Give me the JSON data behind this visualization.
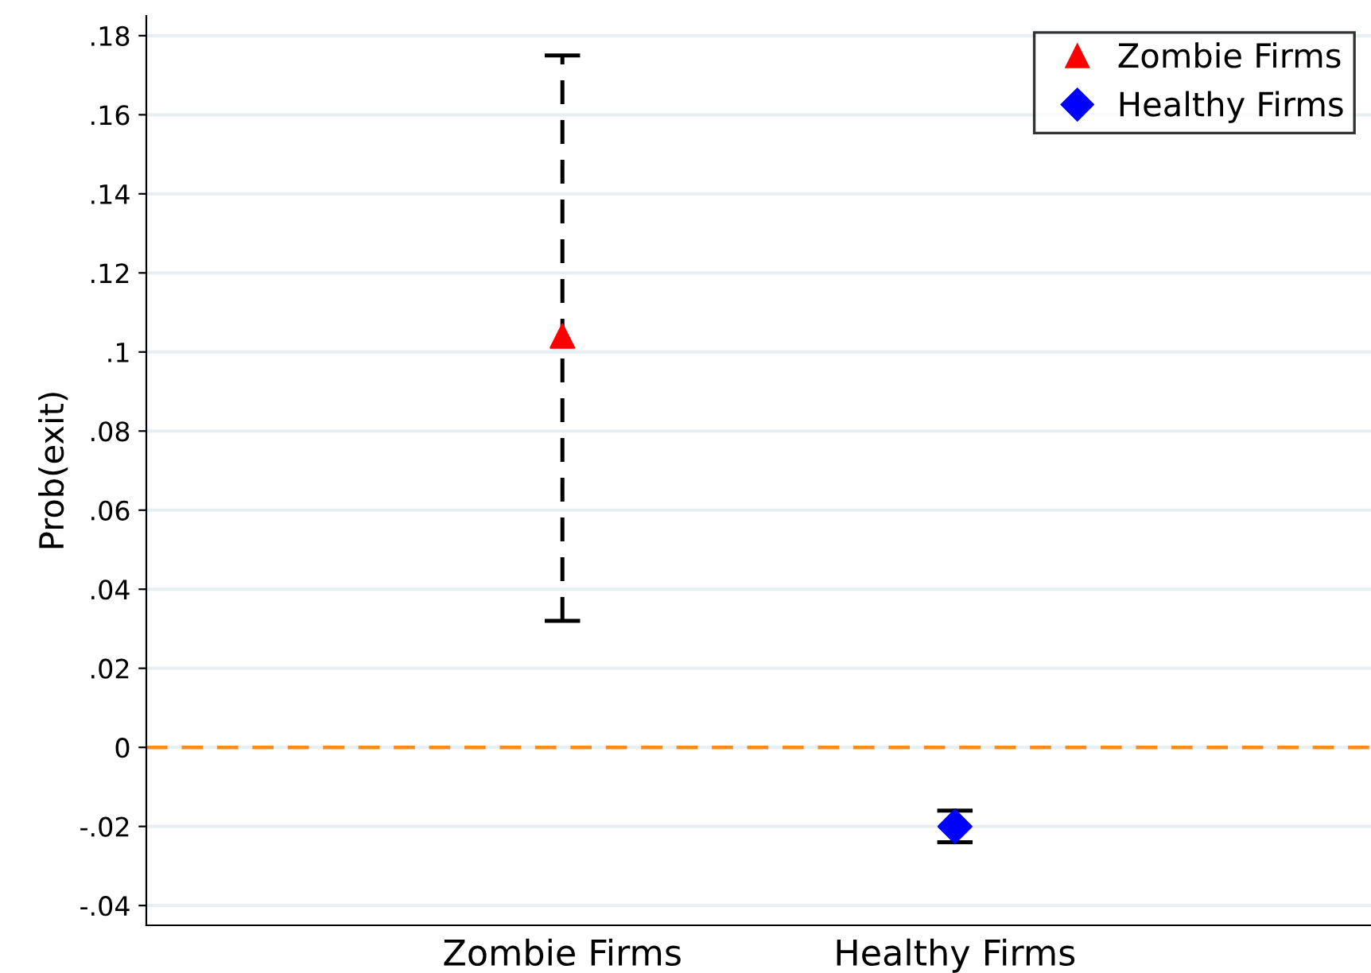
{
  "chart_data": {
    "type": "scatter",
    "ylabel": "Prob(exit)",
    "categories": [
      "Zombie Firms",
      "Healthy Firms"
    ],
    "series": [
      {
        "name": "Zombie Firms",
        "color": "#ff0000",
        "marker": "triangle",
        "line_style": "dashed",
        "values": [
          0.104,
          null
        ],
        "errors": [
          [
            0.032,
            0.175
          ],
          null
        ]
      },
      {
        "name": "Healthy Firms",
        "color": "#0000ff",
        "marker": "diamond",
        "line_style": "solid",
        "values": [
          null,
          -0.02
        ],
        "errors": [
          null,
          [
            -0.024,
            -0.016
          ]
        ]
      }
    ],
    "ylim": [
      -0.045,
      0.185
    ],
    "yticks": [
      {
        "value": -0.04,
        "label": "-.04"
      },
      {
        "value": -0.02,
        "label": "-.02"
      },
      0,
      {
        "value": 0.02,
        "label": ".02"
      },
      {
        "value": 0.04,
        "label": ".04"
      },
      {
        "value": 0.06,
        "label": ".06"
      },
      {
        "value": 0.08,
        "label": ".08"
      },
      {
        "value": 0.1,
        "label": ".1"
      },
      {
        "value": 0.12,
        "label": ".12"
      },
      {
        "value": 0.14,
        "label": ".14"
      },
      {
        "value": 0.16,
        "label": ".16"
      },
      {
        "value": 0.18,
        "label": ".18"
      }
    ],
    "ref_lines": [
      {
        "axis": "y",
        "value": 0,
        "color": "#ff8c1a",
        "line_style": "dashed"
      }
    ],
    "grid": "y",
    "legend": "top right"
  }
}
